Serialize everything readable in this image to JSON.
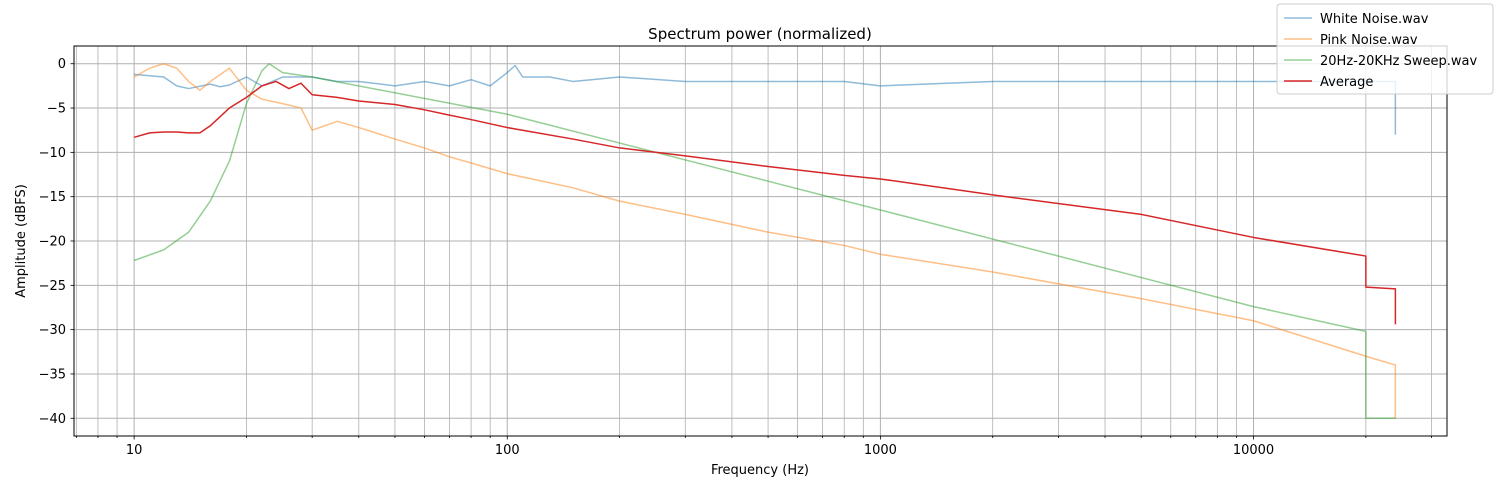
{
  "chart_data": {
    "type": "line",
    "title": "Spectrum power (normalized)",
    "xlabel": "Frequency (Hz)",
    "ylabel": "Amplitude (dBFS)",
    "x_scale": "log",
    "xlim": [
      6.9,
      33000
    ],
    "ylim": [
      -42,
      2
    ],
    "x_ticks": [
      10,
      100,
      1000,
      10000
    ],
    "x_tick_labels": [
      "10",
      "100",
      "1000",
      "10000"
    ],
    "y_ticks": [
      0,
      -5,
      -10,
      -15,
      -20,
      -25,
      -30,
      -35,
      -40
    ],
    "y_tick_labels": [
      "0",
      "−5",
      "−10",
      "−15",
      "−20",
      "−25",
      "−30",
      "−35",
      "−40"
    ],
    "grid": true,
    "legend_position": "top-right",
    "series": [
      {
        "name": "White Noise.wav",
        "color": "#1f77b4",
        "opacity": 0.5,
        "x": [
          10,
          12,
          13,
          14,
          16,
          17,
          18,
          20,
          22,
          25,
          30,
          35,
          40,
          50,
          60,
          70,
          80,
          90,
          100,
          105,
          110,
          130,
          150,
          200,
          300,
          500,
          800,
          1000,
          2000,
          5000,
          10000,
          20000,
          24000,
          24000
        ],
        "y": [
          -1.2,
          -1.5,
          -2.5,
          -2.8,
          -2.3,
          -2.6,
          -2.4,
          -1.5,
          -2.5,
          -1.5,
          -1.5,
          -2,
          -2,
          -2.5,
          -2,
          -2.5,
          -1.8,
          -2.5,
          -1,
          -0.2,
          -1.5,
          -1.5,
          -2,
          -1.5,
          -2,
          -2,
          -2,
          -2.5,
          -2,
          -2,
          -2,
          -2,
          -2,
          -8
        ]
      },
      {
        "name": "Pink Noise.wav",
        "color": "#ff7f0e",
        "opacity": 0.5,
        "x": [
          10,
          11,
          12,
          13,
          14,
          15,
          16,
          18,
          20,
          22,
          25,
          28,
          30,
          35,
          40,
          50,
          60,
          70,
          80,
          100,
          150,
          200,
          300,
          500,
          800,
          1000,
          2000,
          5000,
          10000,
          20000,
          24000,
          24000,
          24000
        ],
        "y": [
          -1.5,
          -0.5,
          0,
          -0.5,
          -2,
          -3,
          -2,
          -0.5,
          -3,
          -4,
          -4.5,
          -5,
          -7.5,
          -6.5,
          -7.2,
          -8.5,
          -9.5,
          -10.5,
          -11.2,
          -12.4,
          -14,
          -15.5,
          -17,
          -19,
          -20.5,
          -21.5,
          -23.5,
          -26.5,
          -29,
          -33,
          -34,
          -35,
          -40
        ]
      },
      {
        "name": "20Hz-20KHz Sweep.wav",
        "color": "#2ca02c",
        "opacity": 0.5,
        "x": [
          10,
          12,
          14,
          16,
          18,
          20,
          22,
          23,
          25,
          30,
          100,
          1000,
          10000,
          20000,
          20000,
          24000
        ],
        "y": [
          -22.2,
          -21,
          -19,
          -15.5,
          -11,
          -4.5,
          -0.8,
          0,
          -1,
          -1.5,
          -5.7,
          -16.5,
          -27.4,
          -30.2,
          -40,
          -40
        ]
      },
      {
        "name": "Average",
        "color": "#d62728",
        "opacity": 1,
        "x": [
          10,
          11,
          12,
          13,
          14,
          15,
          16,
          18,
          20,
          22,
          24,
          26,
          28,
          30,
          35,
          40,
          50,
          60,
          70,
          80,
          100,
          150,
          200,
          300,
          500,
          800,
          1000,
          2000,
          5000,
          10000,
          20000,
          20000,
          24000,
          24000
        ],
        "y": [
          -8.3,
          -7.8,
          -7.7,
          -7.7,
          -7.8,
          -7.8,
          -7,
          -5,
          -3.8,
          -2.5,
          -2,
          -2.8,
          -2.2,
          -3.5,
          -3.8,
          -4.2,
          -4.6,
          -5.2,
          -5.8,
          -6.3,
          -7.2,
          -8.5,
          -9.5,
          -10.4,
          -11.6,
          -12.6,
          -13,
          -14.8,
          -17,
          -19.6,
          -21.7,
          -25.2,
          -25.4,
          -29.4
        ]
      }
    ]
  }
}
